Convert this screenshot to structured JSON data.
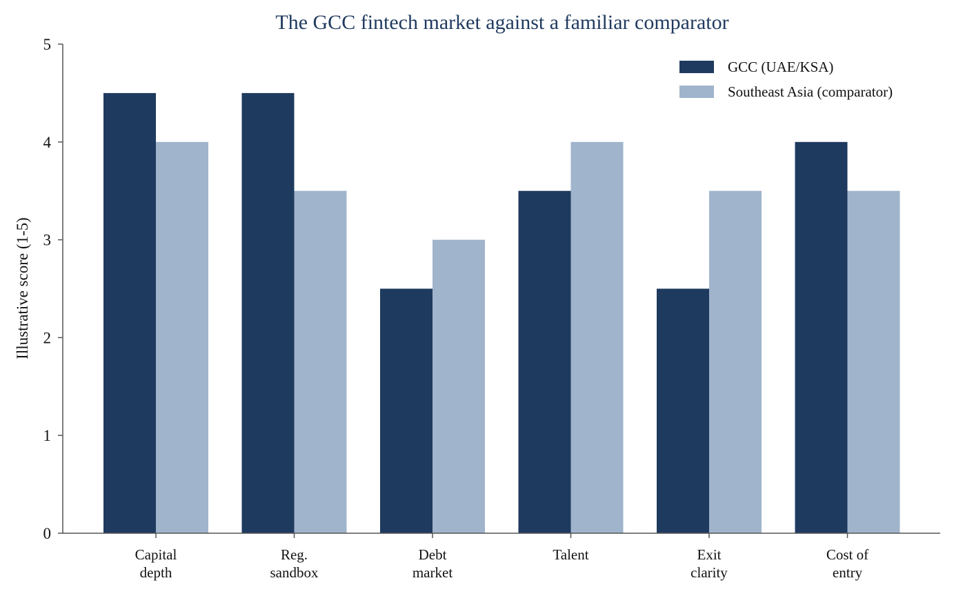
{
  "chart_data": {
    "type": "bar",
    "title": "The GCC fintech market against a familiar comparator",
    "xlabel": "",
    "ylabel": "Illustrative score (1-5)",
    "ylim": [
      0,
      5
    ],
    "yticks": [
      0,
      1,
      2,
      3,
      4,
      5
    ],
    "categories": [
      [
        "Capital",
        "depth"
      ],
      [
        "Reg.",
        "sandbox"
      ],
      [
        "Debt",
        "market"
      ],
      [
        "Talent"
      ],
      [
        "Exit",
        "clarity"
      ],
      [
        "Cost of",
        "entry"
      ]
    ],
    "series": [
      {
        "name": "GCC (UAE/KSA)",
        "color": "#1f3a5f",
        "values": [
          4.5,
          4.5,
          2.5,
          3.5,
          2.5,
          4.0
        ]
      },
      {
        "name": "Southeast Asia (comparator)",
        "color": "#a0b4cc",
        "values": [
          4.0,
          3.5,
          3.0,
          4.0,
          3.5,
          3.5
        ]
      }
    ],
    "grid": false,
    "legend_position": "top-right"
  }
}
